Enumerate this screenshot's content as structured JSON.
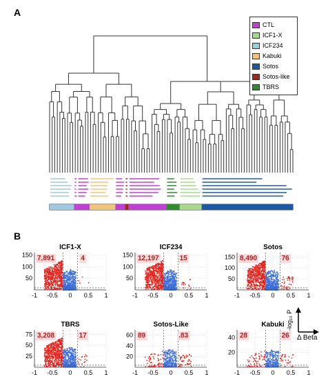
{
  "panels": {
    "a": "A",
    "b": "B"
  },
  "legend": [
    {
      "label": "CTL",
      "color": "#c13fd6"
    },
    {
      "label": "ICF1-X",
      "color": "#a8d98a"
    },
    {
      "label": "ICF234",
      "color": "#9fc9df"
    },
    {
      "label": "Kabuki",
      "color": "#f0c57a"
    },
    {
      "label": "Sotos",
      "color": "#1c5aa6"
    },
    {
      "label": "Sotos-like",
      "color": "#9e2a1f"
    },
    {
      "label": "TBRS",
      "color": "#2e8b2e"
    }
  ],
  "group_bar": [
    {
      "group": "ICF234",
      "color": "#9fc9df",
      "fraction": 0.1
    },
    {
      "group": "Kabuki",
      "color": "#c13fd6",
      "fraction": 0.015
    },
    {
      "group": "CTL",
      "color": "#c13fd6",
      "fraction": 0.05
    },
    {
      "group": "Kabuki",
      "color": "#f0c57a",
      "fraction": 0.105
    },
    {
      "group": "CTL",
      "color": "#c13fd6",
      "fraction": 0.04
    },
    {
      "group": "Sotos-like",
      "color": "#9e2a1f",
      "fraction": 0.015
    },
    {
      "group": "CTL",
      "color": "#c13fd6",
      "fraction": 0.155
    },
    {
      "group": "TBRS",
      "color": "#2e8b2e",
      "fraction": 0.055
    },
    {
      "group": "ICF1-X",
      "color": "#a8d98a",
      "fraction": 0.09
    },
    {
      "group": "Sotos",
      "color": "#1c5aa6",
      "fraction": 0.375
    }
  ],
  "chart_data": [
    {
      "type": "scatter",
      "title": "ICF1-X",
      "xticks": [
        "-1",
        "-0.5",
        "0",
        "0.5",
        "1"
      ],
      "yticks": [
        "50",
        "100",
        "150"
      ],
      "ylim": [
        0,
        160
      ],
      "xlim": [
        -1,
        1
      ],
      "down_count": "7,891",
      "up_count": "4"
    },
    {
      "type": "scatter",
      "title": "ICF234",
      "xticks": [
        "-1",
        "-0.5",
        "0",
        "0.5",
        "1"
      ],
      "yticks": [
        "50",
        "100",
        "150"
      ],
      "ylim": [
        0,
        160
      ],
      "xlim": [
        -1,
        1
      ],
      "down_count": "12,197",
      "up_count": "15"
    },
    {
      "type": "scatter",
      "title": "Sotos",
      "xticks": [
        "-1",
        "-0.5",
        "0",
        "0.5",
        "1"
      ],
      "yticks": [
        "50",
        "100",
        "150"
      ],
      "ylim": [
        0,
        170
      ],
      "xlim": [
        -1,
        1
      ],
      "down_count": "8,490",
      "up_count": "76"
    },
    {
      "type": "scatter",
      "title": "TBRS",
      "xticks": [
        "-1",
        "-0.5",
        "0",
        "0.5",
        "1"
      ],
      "yticks": [
        "25",
        "50",
        "75"
      ],
      "ylim": [
        0,
        85
      ],
      "xlim": [
        -1,
        1
      ],
      "down_count": "3,208",
      "up_count": "17"
    },
    {
      "type": "scatter",
      "title": "Sotos-Like",
      "xticks": [
        "-1",
        "-0.5",
        "0",
        "0.5",
        "1"
      ],
      "yticks": [
        "20",
        "40",
        "60"
      ],
      "ylim": [
        0,
        70
      ],
      "xlim": [
        -1,
        1
      ],
      "down_count": "89",
      "up_count": ".83"
    },
    {
      "type": "scatter",
      "title": "Kabuki",
      "xticks": [
        "-1",
        "-0.5",
        "0",
        "0.5",
        "1"
      ],
      "yticks": [
        "20",
        "40"
      ],
      "ylim": [
        0,
        50
      ],
      "xlim": [
        -1,
        1
      ],
      "down_count": "28",
      "up_count": "26"
    }
  ],
  "axis_key": {
    "y_label": "-log₁₀ P",
    "x_label": "Δ Beta"
  },
  "colors": {
    "down": "#e8221b",
    "ns": "#3b6ee0",
    "up": "#e8221b"
  }
}
